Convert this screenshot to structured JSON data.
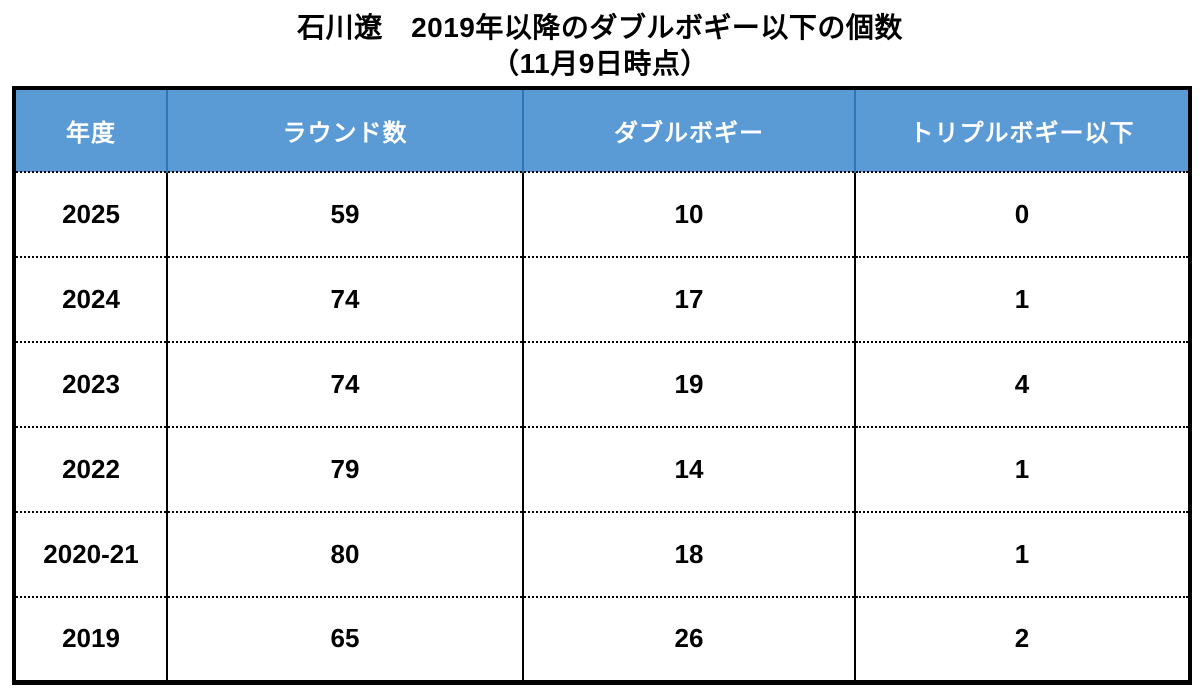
{
  "title": {
    "line1": "石川遼　2019年以降のダブルボギー以下の個数",
    "line2": "（11月9日時点）"
  },
  "colors": {
    "header_background": "#5B9BD5",
    "header_text": "#FFFFFF",
    "header_divider": "#2E75B6",
    "body_border": "#000000",
    "page_background": "#FFFFFF"
  },
  "chart_data": {
    "type": "table",
    "title": "石川遼　2019年以降のダブルボギー以下の個数（11月9日時点）",
    "columns": [
      "年度",
      "ラウンド数",
      "ダブルボギー",
      "トリプルボギー以下"
    ],
    "rows": [
      [
        "2025",
        59,
        10,
        0
      ],
      [
        "2024",
        74,
        17,
        1
      ],
      [
        "2023",
        74,
        19,
        4
      ],
      [
        "2022",
        79,
        14,
        1
      ],
      [
        "2020-21",
        80,
        18,
        1
      ],
      [
        "2019",
        65,
        26,
        2
      ]
    ],
    "layout": {
      "header_style": "blue band, white bold text",
      "row_separators": "dotted",
      "column_separators": "solid",
      "outer_border": "thick solid black"
    }
  }
}
